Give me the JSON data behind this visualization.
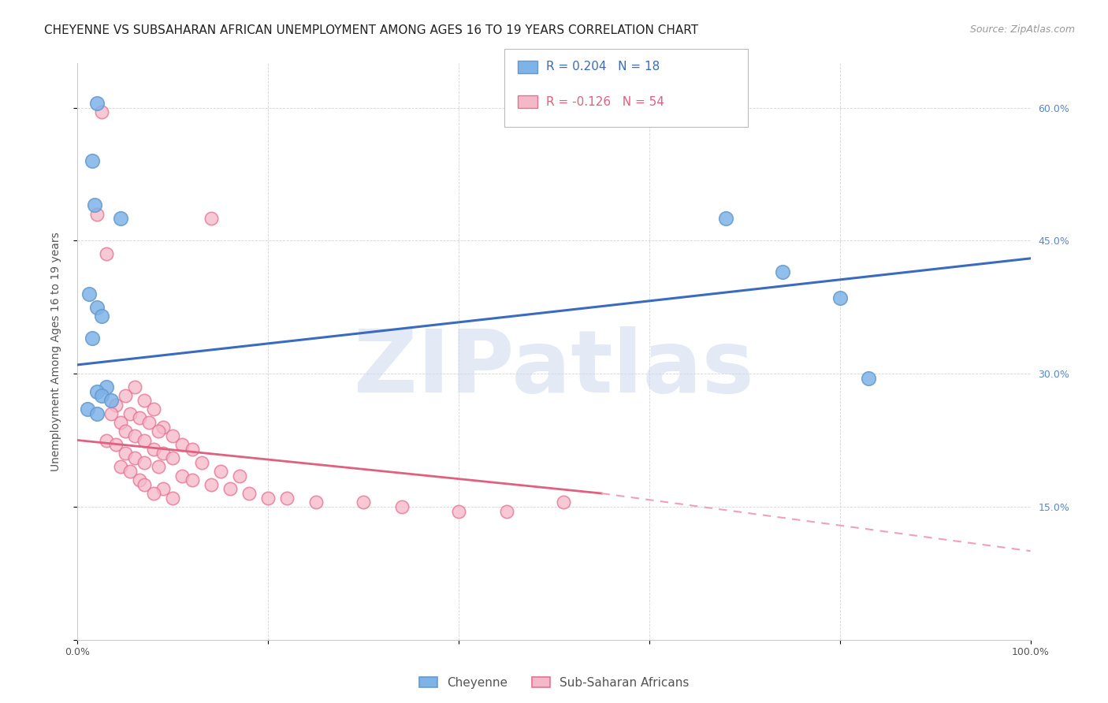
{
  "title": "CHEYENNE VS SUBSAHARAN AFRICAN UNEMPLOYMENT AMONG AGES 16 TO 19 YEARS CORRELATION CHART",
  "source": "Source: ZipAtlas.com",
  "ylabel": "Unemployment Among Ages 16 to 19 years",
  "xlim": [
    0,
    100
  ],
  "ylim": [
    0,
    65
  ],
  "cheyenne_color": "#7eb3e8",
  "cheyenne_edge": "#6699cc",
  "subsaharan_color": "#f5b8c8",
  "subsaharan_edge": "#e87090",
  "blue_line_color": "#3a6bbf",
  "pink_line_color": "#e06080",
  "pink_dash_color": "#f0a0b8",
  "watermark_color": "#ccd9f0",
  "grid_color": "#d0d0d0",
  "right_tick_color": "#5588cc",
  "cheyenne_points": [
    [
      2.0,
      60.5
    ],
    [
      1.5,
      54.0
    ],
    [
      1.8,
      49.0
    ],
    [
      4.5,
      47.5
    ],
    [
      1.2,
      39.0
    ],
    [
      2.0,
      37.5
    ],
    [
      2.5,
      36.5
    ],
    [
      1.5,
      34.0
    ],
    [
      3.0,
      28.5
    ],
    [
      2.0,
      28.0
    ],
    [
      2.5,
      27.5
    ],
    [
      3.5,
      27.0
    ],
    [
      1.0,
      26.0
    ],
    [
      2.0,
      25.5
    ],
    [
      68.0,
      47.5
    ],
    [
      74.0,
      41.5
    ],
    [
      80.0,
      38.5
    ],
    [
      83.0,
      29.5
    ]
  ],
  "subsaharan_points": [
    [
      2.5,
      59.5
    ],
    [
      14.0,
      47.5
    ],
    [
      2.0,
      48.0
    ],
    [
      3.0,
      43.5
    ],
    [
      6.0,
      28.5
    ],
    [
      5.0,
      27.5
    ],
    [
      7.0,
      27.0
    ],
    [
      4.0,
      26.5
    ],
    [
      8.0,
      26.0
    ],
    [
      3.5,
      25.5
    ],
    [
      5.5,
      25.5
    ],
    [
      6.5,
      25.0
    ],
    [
      4.5,
      24.5
    ],
    [
      7.5,
      24.5
    ],
    [
      9.0,
      24.0
    ],
    [
      5.0,
      23.5
    ],
    [
      8.5,
      23.5
    ],
    [
      10.0,
      23.0
    ],
    [
      6.0,
      23.0
    ],
    [
      3.0,
      22.5
    ],
    [
      7.0,
      22.5
    ],
    [
      11.0,
      22.0
    ],
    [
      4.0,
      22.0
    ],
    [
      8.0,
      21.5
    ],
    [
      12.0,
      21.5
    ],
    [
      5.0,
      21.0
    ],
    [
      9.0,
      21.0
    ],
    [
      6.0,
      20.5
    ],
    [
      10.0,
      20.5
    ],
    [
      7.0,
      20.0
    ],
    [
      13.0,
      20.0
    ],
    [
      4.5,
      19.5
    ],
    [
      8.5,
      19.5
    ],
    [
      15.0,
      19.0
    ],
    [
      5.5,
      19.0
    ],
    [
      11.0,
      18.5
    ],
    [
      17.0,
      18.5
    ],
    [
      6.5,
      18.0
    ],
    [
      12.0,
      18.0
    ],
    [
      7.0,
      17.5
    ],
    [
      14.0,
      17.5
    ],
    [
      9.0,
      17.0
    ],
    [
      16.0,
      17.0
    ],
    [
      8.0,
      16.5
    ],
    [
      18.0,
      16.5
    ],
    [
      10.0,
      16.0
    ],
    [
      20.0,
      16.0
    ],
    [
      22.0,
      16.0
    ],
    [
      25.0,
      15.5
    ],
    [
      30.0,
      15.5
    ],
    [
      34.0,
      15.0
    ],
    [
      40.0,
      14.5
    ],
    [
      45.0,
      14.5
    ],
    [
      51.0,
      15.5
    ]
  ],
  "blue_line_x0": 0,
  "blue_line_y0": 31.0,
  "blue_line_x1": 100,
  "blue_line_y1": 43.0,
  "pink_solid_x0": 0,
  "pink_solid_y0": 22.5,
  "pink_solid_x1": 55,
  "pink_solid_y1": 16.5,
  "pink_dash_x0": 55,
  "pink_dash_y0": 16.5,
  "pink_dash_x1": 100,
  "pink_dash_y1": 10.0,
  "title_fontsize": 11,
  "source_fontsize": 9,
  "tick_fontsize": 9,
  "ylabel_fontsize": 10
}
